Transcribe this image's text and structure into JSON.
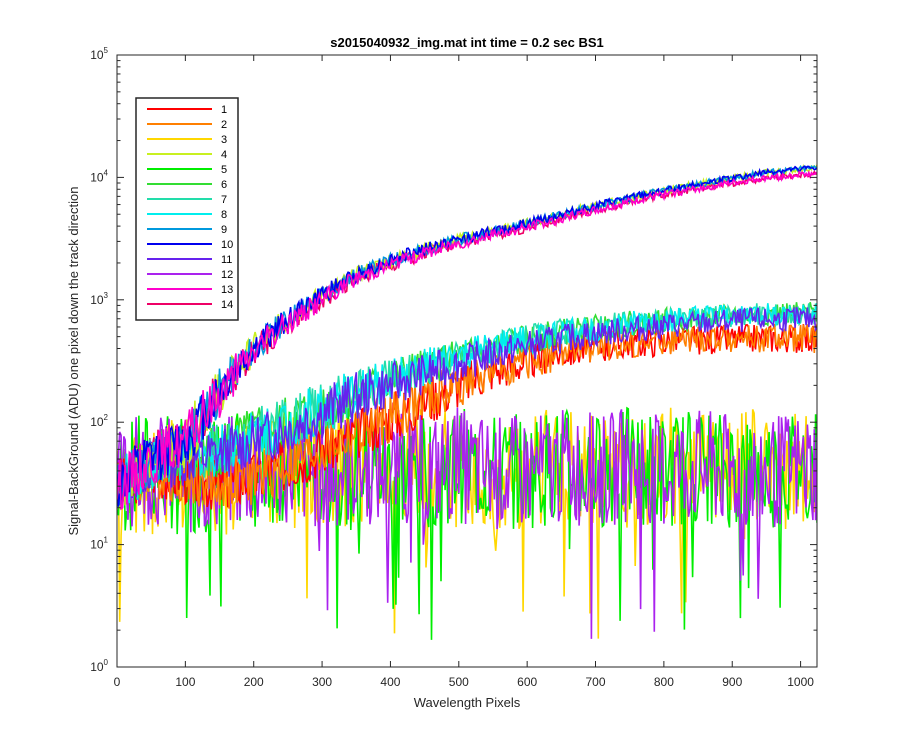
{
  "chart_data": {
    "type": "line",
    "title": "s2015040932_img.mat int time = 0.2 sec   BS1",
    "xlabel": "Wavelength Pixels",
    "ylabel": "Signal-BackGround (ADU) one pixel down the track direction",
    "xlim": [
      0,
      1024
    ],
    "ylim": [
      1,
      100000
    ],
    "yscale": "log",
    "x_ticks": [
      "0",
      "100",
      "200",
      "300",
      "400",
      "500",
      "600",
      "700",
      "800",
      "900",
      "1000"
    ],
    "y_ticks": [
      {
        "base": "10",
        "exp": "0"
      },
      {
        "base": "10",
        "exp": "1"
      },
      {
        "base": "10",
        "exp": "2"
      },
      {
        "base": "10",
        "exp": "3"
      },
      {
        "base": "10",
        "exp": "4"
      },
      {
        "base": "10",
        "exp": "5"
      }
    ],
    "legend_position": "top-left",
    "x": [
      0,
      50,
      100,
      150,
      200,
      250,
      300,
      350,
      400,
      450,
      500,
      550,
      600,
      650,
      700,
      750,
      800,
      850,
      900,
      950,
      1024
    ],
    "series": [
      {
        "name": "1",
        "color": "#ff0000",
        "values": [
          30,
          40,
          35,
          30,
          35,
          45,
          60,
          80,
          110,
          150,
          200,
          260,
          310,
          370,
          410,
          440,
          460,
          470,
          480,
          490,
          480
        ]
      },
      {
        "name": "2",
        "color": "#ff7f00",
        "values": [
          30,
          40,
          35,
          30,
          35,
          45,
          60,
          80,
          110,
          150,
          200,
          260,
          310,
          370,
          410,
          440,
          460,
          470,
          480,
          490,
          480
        ]
      },
      {
        "name": "3",
        "color": "#ffd700",
        "values": [
          25,
          30,
          40,
          35,
          40,
          40,
          45,
          40,
          40,
          45,
          40,
          35,
          40,
          45,
          40,
          40,
          45,
          40,
          40,
          45,
          40
        ]
      },
      {
        "name": "4",
        "color": "#c8f020",
        "values": [
          30,
          50,
          70,
          180,
          400,
          700,
          1100,
          1600,
          2100,
          2600,
          3100,
          3600,
          4200,
          5000,
          5800,
          6800,
          7800,
          8800,
          9800,
          11000,
          12000
        ]
      },
      {
        "name": "5",
        "color": "#00ee00",
        "values": [
          30,
          45,
          35,
          40,
          40,
          45,
          40,
          45,
          40,
          40,
          45,
          40,
          40,
          45,
          40,
          45,
          40,
          45,
          40,
          40,
          45
        ]
      },
      {
        "name": "6",
        "color": "#33dd33",
        "values": [
          30,
          45,
          55,
          60,
          80,
          100,
          130,
          170,
          220,
          280,
          340,
          410,
          470,
          540,
          590,
          640,
          680,
          710,
          740,
          760,
          780
        ]
      },
      {
        "name": "7",
        "color": "#22ddaa",
        "values": [
          30,
          45,
          55,
          60,
          80,
          100,
          130,
          170,
          220,
          280,
          340,
          410,
          470,
          540,
          590,
          640,
          680,
          710,
          740,
          760,
          780
        ]
      },
      {
        "name": "8",
        "color": "#00eeee",
        "values": [
          30,
          45,
          55,
          60,
          80,
          100,
          130,
          170,
          220,
          280,
          340,
          410,
          470,
          540,
          590,
          640,
          680,
          710,
          740,
          760,
          780
        ]
      },
      {
        "name": "9",
        "color": "#0099dd",
        "values": [
          30,
          50,
          70,
          180,
          400,
          700,
          1100,
          1600,
          2100,
          2600,
          3100,
          3600,
          4200,
          5000,
          5800,
          6800,
          7800,
          8800,
          9800,
          11000,
          12000
        ]
      },
      {
        "name": "10",
        "color": "#0000ee",
        "values": [
          30,
          50,
          70,
          180,
          400,
          700,
          1100,
          1600,
          2100,
          2600,
          3100,
          3600,
          4200,
          5000,
          5800,
          6800,
          7800,
          8800,
          9800,
          11000,
          12000
        ]
      },
      {
        "name": "11",
        "color": "#6622ee",
        "values": [
          30,
          45,
          50,
          55,
          70,
          90,
          120,
          160,
          200,
          250,
          300,
          360,
          420,
          480,
          530,
          570,
          610,
          640,
          670,
          690,
          700
        ]
      },
      {
        "name": "12",
        "color": "#aa22ee",
        "values": [
          30,
          45,
          35,
          40,
          40,
          45,
          40,
          45,
          40,
          40,
          45,
          40,
          40,
          45,
          40,
          45,
          40,
          45,
          40,
          40,
          45
        ]
      },
      {
        "name": "13",
        "color": "#ff00cc",
        "values": [
          30,
          50,
          70,
          170,
          380,
          650,
          1000,
          1500,
          1950,
          2400,
          2900,
          3400,
          3900,
          4600,
          5400,
          6300,
          7200,
          8100,
          9000,
          9900,
          10800
        ]
      },
      {
        "name": "14",
        "color": "#ee0066",
        "values": [
          30,
          50,
          70,
          170,
          380,
          650,
          1000,
          1500,
          1950,
          2400,
          2900,
          3400,
          3900,
          4600,
          5400,
          6300,
          7200,
          8100,
          9000,
          9900,
          10800
        ]
      }
    ]
  }
}
